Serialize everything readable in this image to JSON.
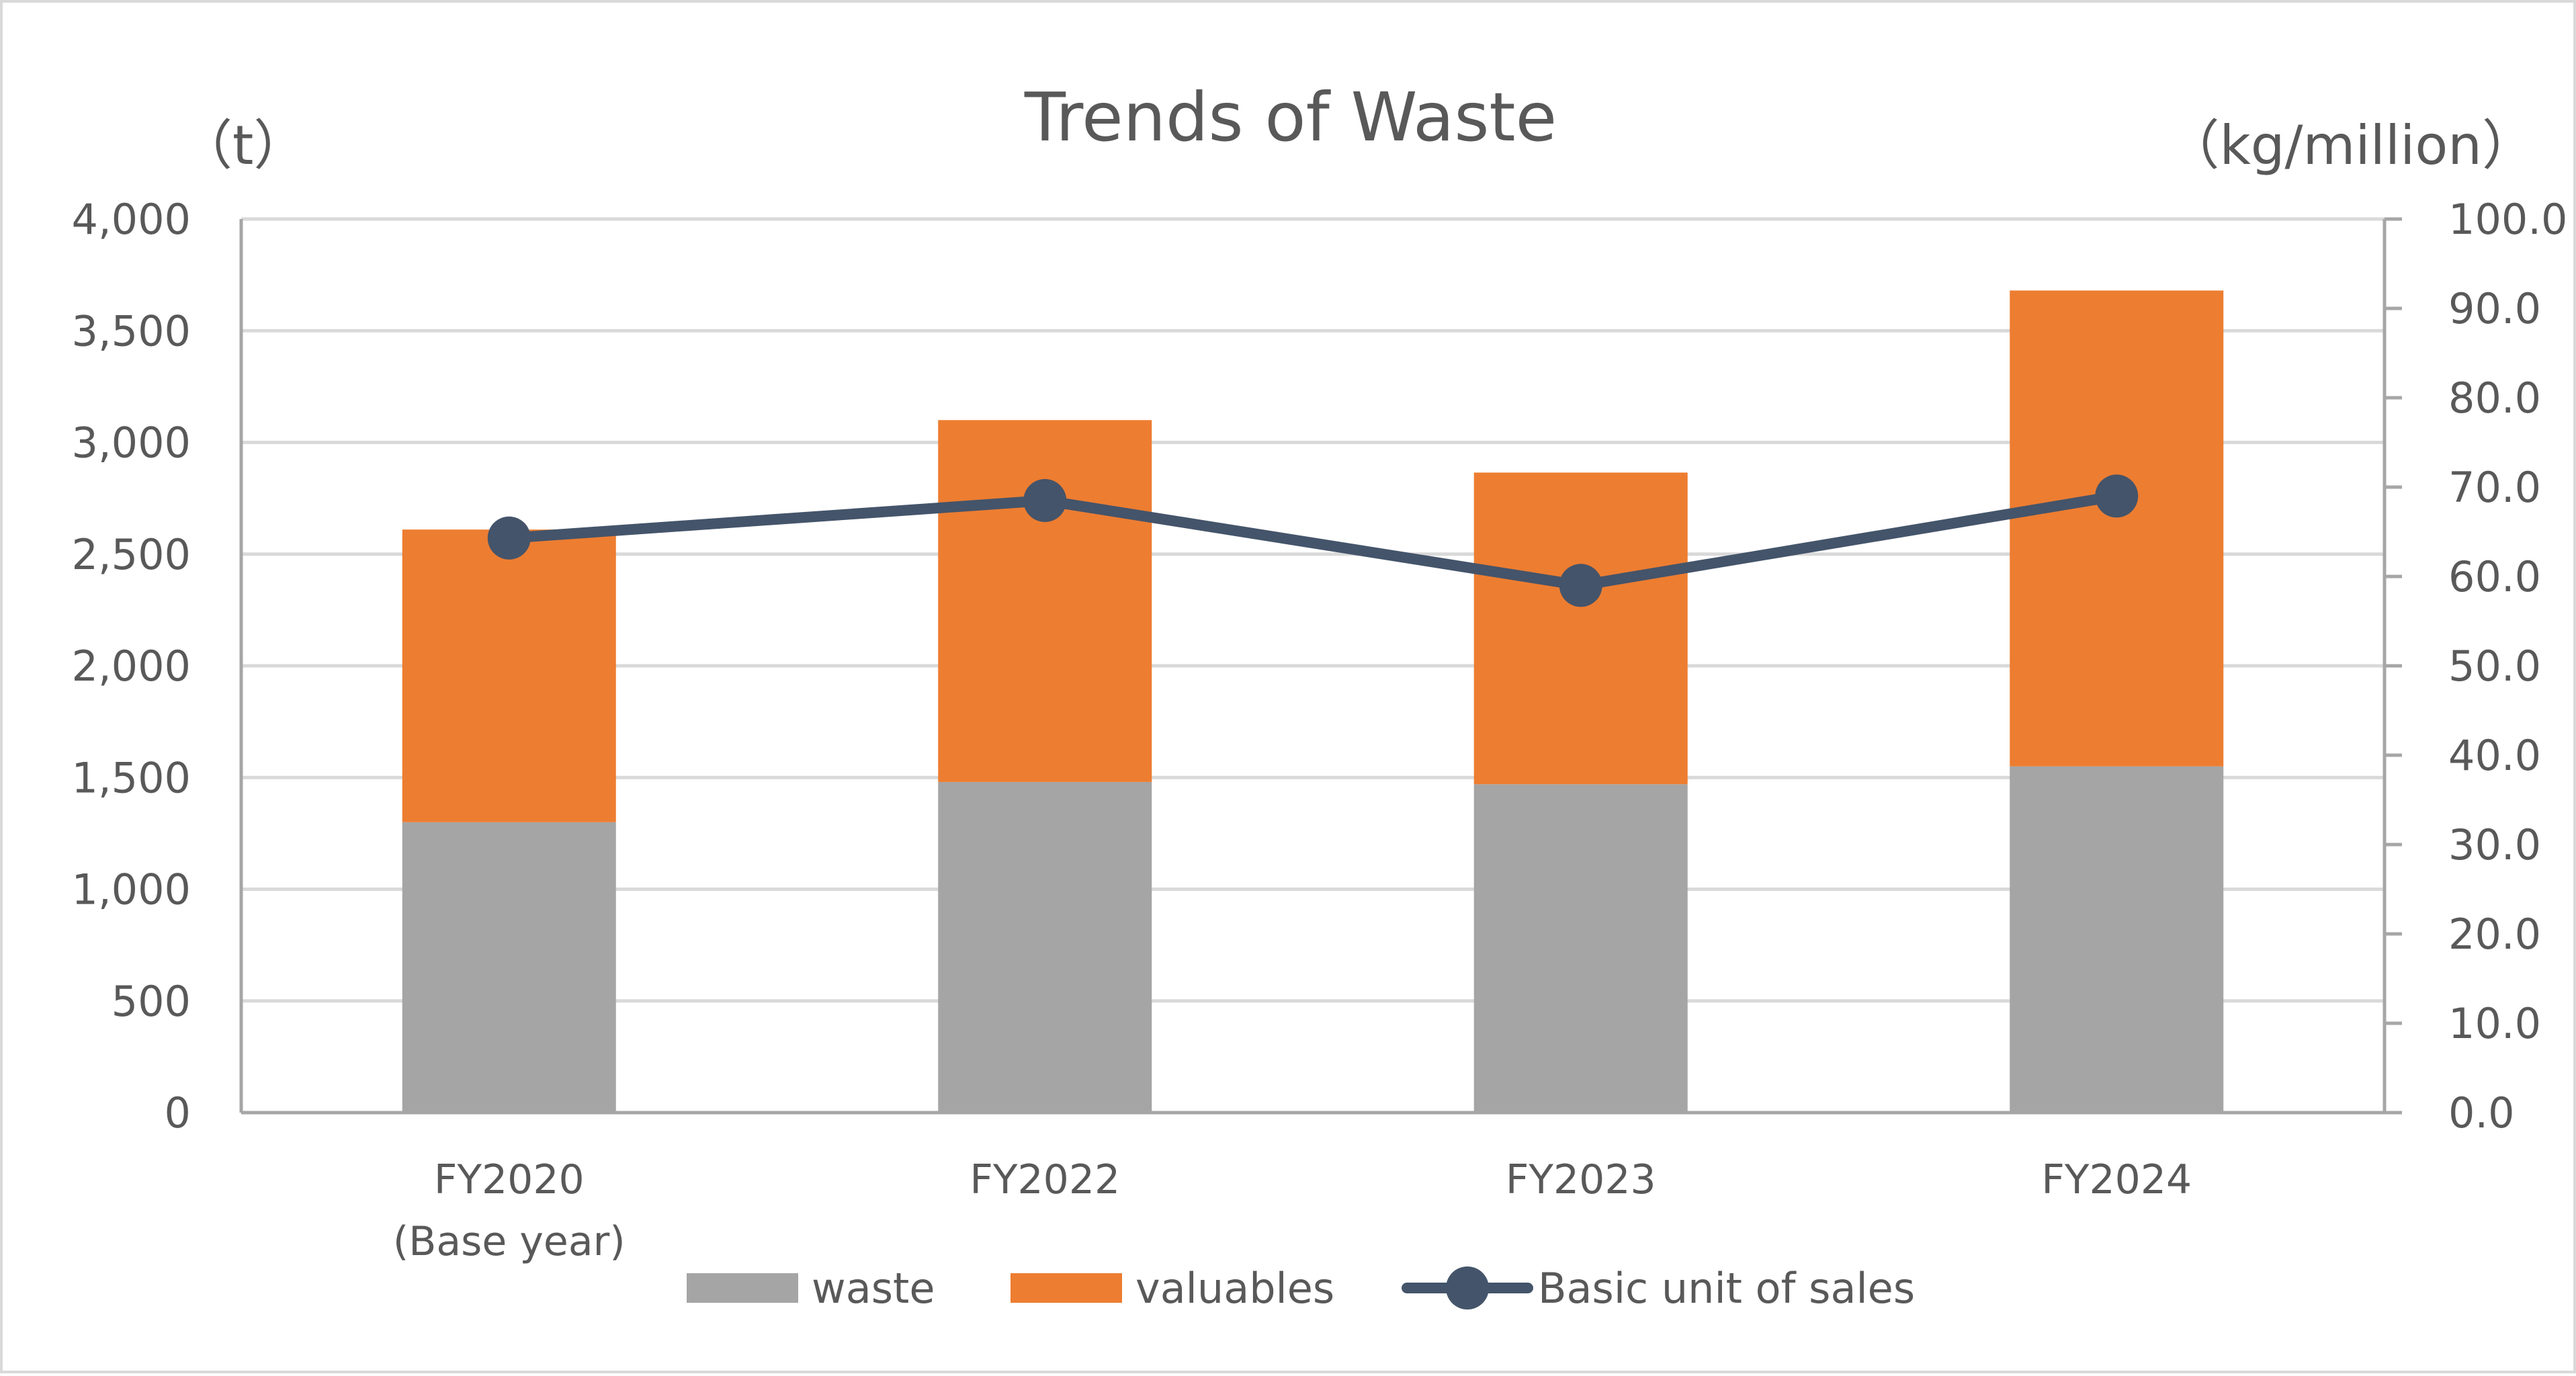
{
  "chart_data": {
    "type": "bar",
    "title": "Trends of Waste",
    "y_left_unit": "（t）",
    "y_right_unit": "（kg/million）",
    "categories": [
      [
        "FY2020",
        "(Base year)"
      ],
      [
        "FY2022"
      ],
      [
        "FY2023"
      ],
      [
        "FY2024"
      ]
    ],
    "stacked": true,
    "series": [
      {
        "name": "waste",
        "type": "bar",
        "axis": "left",
        "color": "#a5a5a5",
        "values": [
          1300,
          1480,
          1470,
          1550
        ]
      },
      {
        "name": "valuables",
        "type": "bar",
        "axis": "left",
        "color": "#ed7d31",
        "values": [
          1310,
          1620,
          1395,
          2130
        ]
      },
      {
        "name": "Basic unit of sales",
        "type": "line",
        "axis": "right",
        "color": "#44546a",
        "values": [
          64.3,
          68.5,
          59.0,
          69.0
        ]
      }
    ],
    "y_left": {
      "min": 0,
      "max": 4000,
      "step": 500,
      "ticks": [
        "0",
        "500",
        "1,000",
        "1,500",
        "2,000",
        "2,500",
        "3,000",
        "3,500",
        "4,000"
      ]
    },
    "y_right": {
      "min": 0,
      "max": 100,
      "step": 10,
      "ticks": [
        "0.0",
        "10.0",
        "20.0",
        "30.0",
        "40.0",
        "50.0",
        "60.0",
        "70.0",
        "80.0",
        "90.0",
        "100.0"
      ]
    },
    "grid": true,
    "legend_position": "bottom"
  }
}
